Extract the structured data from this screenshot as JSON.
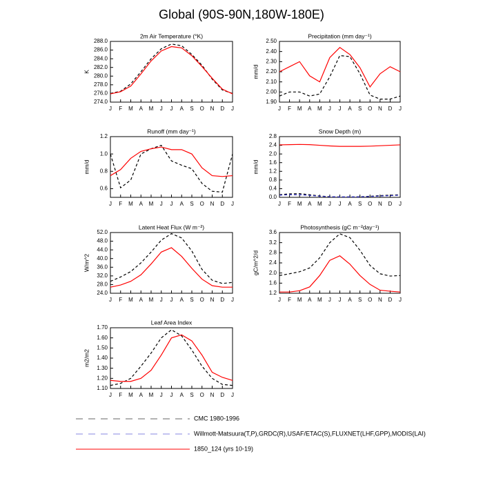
{
  "title": "Global (90S-90N,180W-180E)",
  "legend": [
    {
      "name": "CMC 1980-1996",
      "color": "#000000",
      "dash": true
    },
    {
      "name": "Willmott-Matsuura(T,P),GRDC(R),USAF/ETAC(S),FLUXNET(LHF,GPP),MODIS(LAI)",
      "color": "#3333cc",
      "dash": true
    },
    {
      "name": "1850_124 (yrs 10-19)",
      "color": "#ff0000",
      "dash": false
    }
  ],
  "chart_data": [
    {
      "type": "line",
      "title": "2m Air Temperature (°K)",
      "ylabel": "K",
      "categories": [
        "J",
        "F",
        "M",
        "A",
        "M",
        "J",
        "J",
        "A",
        "S",
        "O",
        "N",
        "D",
        "J"
      ],
      "ylim": [
        274,
        288
      ],
      "yticks": [
        {
          "value": 274,
          "label": "274.0"
        },
        {
          "value": 276,
          "label": "276.0"
        },
        {
          "value": 278,
          "label": "278.0"
        },
        {
          "value": 280,
          "label": "280.0"
        },
        {
          "value": 282,
          "label": "282.0"
        },
        {
          "value": 284,
          "label": "284.0"
        },
        {
          "value": 286,
          "label": "286.0"
        },
        {
          "value": 288,
          "label": "288.0"
        }
      ],
      "series": [
        {
          "values": [
            276.0,
            276.5,
            278.2,
            281.0,
            284.0,
            286.3,
            287.4,
            287.0,
            285.0,
            282.5,
            279.3,
            276.8,
            276.0
          ]
        },
        null,
        {
          "values": [
            275.9,
            276.4,
            277.7,
            280.5,
            283.5,
            285.8,
            286.8,
            286.5,
            284.7,
            282.2,
            279.5,
            277.0,
            275.9
          ]
        }
      ]
    },
    {
      "type": "line",
      "title": "Precipitation (mm day⁻¹)",
      "ylabel": "mm/d",
      "categories": [
        "J",
        "F",
        "M",
        "A",
        "M",
        "J",
        "J",
        "A",
        "S",
        "O",
        "N",
        "D",
        "J"
      ],
      "ylim": [
        1.9,
        2.5
      ],
      "yticks": [
        {
          "value": 1.9,
          "label": "1.90"
        },
        {
          "value": 2.0,
          "label": "2.00"
        },
        {
          "value": 2.1,
          "label": "2.10"
        },
        {
          "value": 2.2,
          "label": "2.20"
        },
        {
          "value": 2.3,
          "label": "2.30"
        },
        {
          "value": 2.4,
          "label": "2.40"
        },
        {
          "value": 2.5,
          "label": "2.50"
        }
      ],
      "series": [
        {
          "values": [
            1.96,
            2.0,
            2.0,
            1.96,
            1.98,
            2.15,
            2.36,
            2.35,
            2.18,
            1.97,
            1.93,
            1.93,
            1.96
          ]
        },
        null,
        {
          "values": [
            2.2,
            2.25,
            2.3,
            2.16,
            2.1,
            2.34,
            2.44,
            2.37,
            2.24,
            2.05,
            2.18,
            2.25,
            2.2
          ]
        }
      ]
    },
    {
      "type": "line",
      "title": "Runoff (mm day⁻¹)",
      "ylabel": "mm/d",
      "categories": [
        "J",
        "F",
        "M",
        "A",
        "M",
        "J",
        "J",
        "A",
        "S",
        "O",
        "N",
        "D",
        "J"
      ],
      "ylim": [
        0.5,
        1.2
      ],
      "yticks": [
        0.6,
        0.8,
        {
          "value": 1,
          "label": "1.0"
        },
        1.2
      ],
      "series": [
        {
          "values": [
            1.0,
            0.61,
            0.7,
            1.0,
            1.06,
            1.1,
            0.92,
            0.87,
            0.83,
            0.66,
            0.57,
            0.56,
            1.0
          ]
        },
        null,
        {
          "values": [
            0.75,
            0.82,
            0.95,
            1.03,
            1.06,
            1.08,
            1.05,
            1.05,
            1.0,
            0.84,
            0.75,
            0.74,
            0.75
          ]
        }
      ]
    },
    {
      "type": "line",
      "title": "Snow Depth (m)",
      "ylabel": "mm/d",
      "categories": [
        "J",
        "F",
        "M",
        "A",
        "M",
        "J",
        "J",
        "A",
        "S",
        "O",
        "N",
        "D",
        "J"
      ],
      "ylim": [
        0,
        2.8
      ],
      "yticks": [
        {
          "value": 0,
          "label": "0.0"
        },
        0.4,
        0.8,
        1.2,
        1.6,
        {
          "value": 2,
          "label": "2.0"
        },
        2.4,
        2.8
      ],
      "series": [
        {
          "values": [
            0.12,
            0.16,
            0.17,
            0.12,
            0.06,
            0.03,
            0.02,
            0.02,
            0.03,
            0.05,
            0.08,
            0.1,
            0.12
          ]
        },
        {
          "values": [
            0.1,
            0.12,
            0.12,
            0.09,
            0.05,
            0.03,
            0.02,
            0.02,
            0.02,
            0.04,
            0.06,
            0.08,
            0.1
          ]
        },
        {
          "values": [
            2.42,
            2.43,
            2.44,
            2.43,
            2.4,
            2.37,
            2.35,
            2.35,
            2.35,
            2.36,
            2.38,
            2.4,
            2.42
          ]
        }
      ]
    },
    {
      "type": "line",
      "title": "Latent Heat Flux (W m⁻²)",
      "ylabel": "W/m^2",
      "categories": [
        "J",
        "F",
        "M",
        "A",
        "M",
        "J",
        "J",
        "A",
        "S",
        "O",
        "N",
        "D",
        "J"
      ],
      "ylim": [
        24,
        52
      ],
      "yticks": [
        {
          "value": 24,
          "label": "24.0"
        },
        {
          "value": 28,
          "label": "28.0"
        },
        {
          "value": 32,
          "label": "32.0"
        },
        {
          "value": 36,
          "label": "36.0"
        },
        {
          "value": 40,
          "label": "40.0"
        },
        {
          "value": 44,
          "label": "44.0"
        },
        {
          "value": 48,
          "label": "48.0"
        },
        {
          "value": 52,
          "label": "52.0"
        }
      ],
      "series": [
        {
          "values": [
            29.5,
            31.5,
            34,
            38,
            43,
            48.5,
            51.5,
            49.5,
            43.5,
            35,
            30,
            28.5,
            29
          ]
        },
        null,
        {
          "values": [
            26.8,
            27.8,
            29.5,
            32.5,
            37.5,
            43,
            45,
            41,
            35.5,
            30.5,
            27.5,
            26.8,
            26.8
          ]
        }
      ]
    },
    {
      "type": "line",
      "title": "Photosynthesis (gC m⁻²day⁻¹)",
      "ylabel": "gC/m^2/d",
      "categories": [
        "J",
        "F",
        "M",
        "A",
        "M",
        "J",
        "J",
        "A",
        "S",
        "O",
        "N",
        "D",
        "J"
      ],
      "ylim": [
        1.2,
        3.6
      ],
      "yticks": [
        1.2,
        1.6,
        {
          "value": 2,
          "label": "2.0"
        },
        2.4,
        2.8,
        3.2,
        3.6
      ],
      "series": [
        {
          "values": [
            1.9,
            1.97,
            2.05,
            2.2,
            2.6,
            3.2,
            3.55,
            3.4,
            2.9,
            2.3,
            1.97,
            1.88,
            1.9
          ]
        },
        null,
        {
          "values": [
            1.25,
            1.25,
            1.3,
            1.45,
            1.9,
            2.5,
            2.68,
            2.35,
            1.9,
            1.55,
            1.32,
            1.28,
            1.25
          ]
        }
      ]
    },
    {
      "type": "line",
      "title": "Leaf Area Index",
      "ylabel": "m2/m2",
      "categories": [
        "J",
        "F",
        "M",
        "A",
        "M",
        "J",
        "J",
        "A",
        "S",
        "O",
        "N",
        "D",
        "J"
      ],
      "ylim": [
        1.1,
        1.7
      ],
      "yticks": [
        {
          "value": 1.1,
          "label": "1.10"
        },
        {
          "value": 1.2,
          "label": "1.20"
        },
        {
          "value": 1.3,
          "label": "1.30"
        },
        {
          "value": 1.4,
          "label": "1.40"
        },
        {
          "value": 1.5,
          "label": "1.50"
        },
        {
          "value": 1.6,
          "label": "1.60"
        },
        {
          "value": 1.7,
          "label": "1.70"
        }
      ],
      "series": [
        {
          "values": [
            1.13,
            1.15,
            1.2,
            1.32,
            1.45,
            1.6,
            1.68,
            1.62,
            1.48,
            1.32,
            1.2,
            1.14,
            1.13
          ]
        },
        null,
        {
          "values": [
            1.18,
            1.17,
            1.17,
            1.2,
            1.28,
            1.43,
            1.6,
            1.63,
            1.57,
            1.43,
            1.26,
            1.21,
            1.18
          ]
        }
      ]
    }
  ]
}
